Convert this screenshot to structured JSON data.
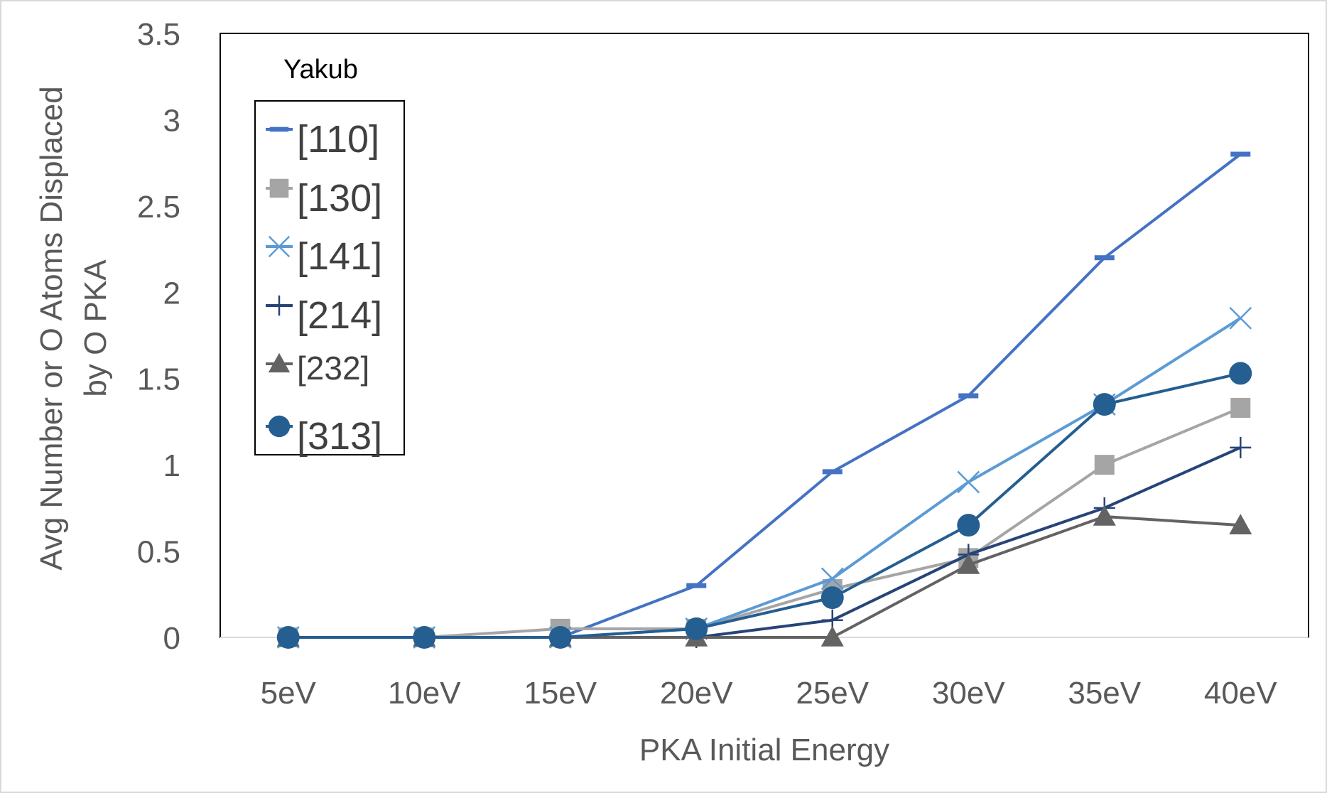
{
  "chart_data": {
    "type": "line",
    "title": "",
    "legend_title": "Yakub",
    "legend_position": "top-left-inside",
    "xlabel": "PKA Initial Energy",
    "ylabel_lines": [
      "Avg Number or O Atoms Displaced",
      "by O PKA"
    ],
    "categories": [
      "5eV",
      "10eV",
      "15eV",
      "20eV",
      "25eV",
      "30eV",
      "35eV",
      "40eV"
    ],
    "ylim": [
      0,
      3.5
    ],
    "yticks": [
      "0",
      "0.5",
      "1",
      "1.5",
      "2",
      "2.5",
      "3",
      "3.5"
    ],
    "grid": false,
    "series": [
      {
        "name": "[110]",
        "color": "#4472C4",
        "marker": "dash",
        "values": [
          0,
          0,
          0,
          0.3,
          0.96,
          1.4,
          2.2,
          2.8
        ]
      },
      {
        "name": "[130]",
        "color": "#A5A5A5",
        "marker": "square",
        "values": [
          0,
          0,
          0.05,
          0.05,
          0.28,
          0.46,
          1.0,
          1.33
        ]
      },
      {
        "name": "[141]",
        "color": "#5B9BD5",
        "marker": "x",
        "values": [
          0,
          0,
          0,
          0.05,
          0.34,
          0.9,
          1.35,
          1.85
        ]
      },
      {
        "name": "[214]",
        "color": "#264478",
        "marker": "plus",
        "values": [
          0,
          0,
          0,
          0,
          0.1,
          0.48,
          0.75,
          1.1
        ]
      },
      {
        "name": "[232]",
        "color": "#636363",
        "marker": "triangle",
        "values": [
          0,
          0,
          0,
          0,
          0,
          0.42,
          0.7,
          0.65
        ]
      },
      {
        "name": "[313]",
        "color": "#255E91",
        "marker": "circle",
        "values": [
          0,
          0,
          0,
          0.05,
          0.23,
          0.65,
          1.35,
          1.53
        ]
      }
    ]
  }
}
